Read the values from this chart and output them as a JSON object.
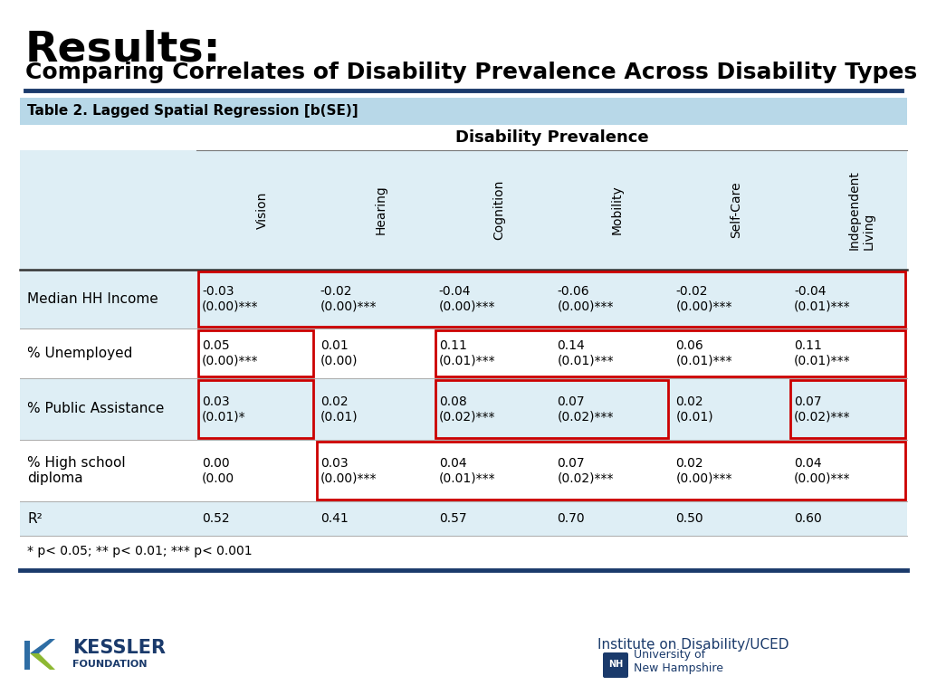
{
  "title_line1": "Results:",
  "title_line2": "Comparing Correlates of Disability Prevalence Across Disability Types",
  "table_title": "Table 2. Lagged Spatial Regression [b(SE)]",
  "col_header_group": "Disability Prevalence",
  "col_headers": [
    "Vision",
    "Hearing",
    "Cognition",
    "Mobility",
    "Self-Care",
    "Independent\nLiving"
  ],
  "row_headers": [
    "Median HH Income",
    "% Unemployed",
    "% Public Assistance",
    "% High school\ndiploma",
    "R²"
  ],
  "data": [
    [
      "-0.03\n(0.00)***",
      "-0.02\n(0.00)***",
      "-0.04\n(0.00)***",
      "-0.06\n(0.00)***",
      "-0.02\n(0.00)***",
      "-0.04\n(0.01)***"
    ],
    [
      "0.05\n(0.00)***",
      "0.01\n(0.00)",
      "0.11\n(0.01)***",
      "0.14\n(0.01)***",
      "0.06\n(0.01)***",
      "0.11\n(0.01)***"
    ],
    [
      "0.03\n(0.01)*",
      "0.02\n(0.01)",
      "0.08\n(0.02)***",
      "0.07\n(0.02)***",
      "0.02\n(0.01)",
      "0.07\n(0.02)***"
    ],
    [
      "0.00\n(0.00",
      "0.03\n(0.00)***",
      "0.04\n(0.01)***",
      "0.07\n(0.02)***",
      "0.02\n(0.00)***",
      "0.04\n(0.00)***"
    ],
    [
      "0.52",
      "0.41",
      "0.57",
      "0.70",
      "0.50",
      "0.60"
    ]
  ],
  "red_boxes": [
    {
      "row": 0,
      "cols": [
        0,
        1,
        2,
        3,
        4,
        5
      ]
    },
    {
      "row": 1,
      "cols": [
        0,
        2,
        3,
        4,
        5
      ]
    },
    {
      "row": 2,
      "cols": [
        0,
        2,
        3,
        5
      ]
    },
    {
      "row": 3,
      "cols": [
        1,
        2,
        3,
        4,
        5
      ]
    }
  ],
  "footnote": "* p< 0.05; ** p< 0.01; *** p< 0.001",
  "bg_color": "#ffffff",
  "table_header_bg": "#b8d8e8",
  "table_row_alt_bg": "#deeef5",
  "table_row_bg": "#ffffff",
  "divider_color": "#1a3a6b",
  "bottom_border_color": "#1a3a6b",
  "red_box_color": "#cc0000",
  "kessler_text_color": "#1a3a6b",
  "kessler_k_color": "#2e6da4",
  "kessler_leaf_color": "#8db832"
}
